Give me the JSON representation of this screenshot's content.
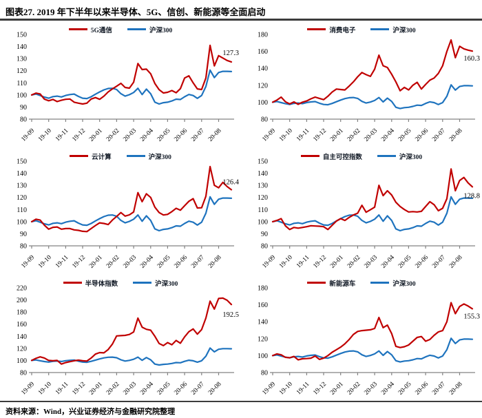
{
  "header": {
    "title": "图表27. 2019 年下半年以来半导体、5G、信创、新能源等全面启动"
  },
  "footer": {
    "source": "资料来源：Wind，兴业证券经济与金融研究院整理"
  },
  "colors": {
    "series_red": "#C00000",
    "benchmark_blue": "#1E73BE",
    "axis_gray": "#828282"
  },
  "chart_data": [
    {
      "type": "line",
      "title": "5G通信 vs 沪深300",
      "ylim": [
        80,
        150
      ],
      "yticks": [
        80,
        90,
        100,
        110,
        120,
        130,
        140,
        150
      ],
      "x_tick_labels": [
        "19-09",
        "19-10",
        "19-11",
        "19-12",
        "20-01",
        "20-02",
        "20-03",
        "20-04",
        "20-05",
        "20-06",
        "20-07",
        "20-08"
      ],
      "end_label": "127.3",
      "legend_position": "top-center",
      "grid": false,
      "series": [
        {
          "name": "5G通信",
          "color": "#C00000",
          "values": [
            100,
            101.5,
            100.8,
            96.5,
            95.2,
            96.3,
            94.5,
            95.6,
            96.4,
            96.6,
            94,
            93.2,
            92.5,
            93.2,
            96.6,
            97.8,
            96.4,
            99,
            102.5,
            105,
            107.2,
            109.6,
            106.2,
            105.6,
            110.5,
            126,
            121,
            121.3,
            117.5,
            109.5,
            104.3,
            101.6,
            102.2,
            103.6,
            101.8,
            105.2,
            114,
            115.8,
            110,
            105,
            104.5,
            114,
            141,
            124,
            132.5,
            130.5,
            128.5,
            127.3
          ]
        },
        {
          "name": "沪深300",
          "color": "#1E73BE",
          "values": [
            100,
            100.8,
            99.5,
            98.2,
            97.3,
            98.6,
            99,
            98.3,
            99.6,
            100.3,
            100.7,
            98.8,
            97.3,
            97,
            98.5,
            100.6,
            102.5,
            104.2,
            105.3,
            105.5,
            104.5,
            101,
            99,
            100.2,
            102,
            105.5,
            100.3,
            104.8,
            101,
            94,
            92.5,
            93.6,
            94,
            95,
            96.5,
            96.2,
            98.5,
            100.4,
            99.5,
            97.2,
            99.5,
            107,
            120.5,
            114.3,
            118.5,
            119.5,
            119.5,
            119.3
          ]
        }
      ]
    },
    {
      "type": "line",
      "title": "消费电子 vs 沪深300",
      "ylim": [
        80,
        180
      ],
      "yticks": [
        80,
        100,
        120,
        140,
        160,
        180
      ],
      "x_tick_labels": [
        "19-09",
        "19-10",
        "19-11",
        "19-12",
        "20-01",
        "20-02",
        "20-03",
        "20-04",
        "20-05",
        "20-06",
        "20-07",
        "20-08"
      ],
      "end_label": "160.3",
      "legend_position": "top-center",
      "grid": false,
      "series": [
        {
          "name": "消费电子",
          "color": "#C00000",
          "values": [
            100,
            102.5,
            106,
            100.5,
            98,
            100.3,
            97.5,
            100,
            101.5,
            104,
            106,
            104.5,
            103,
            107,
            112,
            115.5,
            115,
            114.5,
            119,
            124,
            130,
            135,
            132.5,
            130.5,
            139,
            155.5,
            143,
            141,
            133,
            124,
            113.5,
            117.5,
            114.5,
            120,
            123.5,
            115.5,
            121,
            126,
            128.5,
            134,
            143,
            160,
            173.5,
            152.5,
            166,
            163,
            161.5,
            160.3
          ]
        },
        {
          "name": "沪深300",
          "color": "#1E73BE",
          "values": [
            100,
            100.8,
            99.5,
            98.2,
            97.3,
            98.6,
            99,
            98.3,
            99.6,
            100.3,
            100.7,
            98.8,
            97.3,
            97,
            98.5,
            100.6,
            102.5,
            104.2,
            105.3,
            105.5,
            104.5,
            101,
            99,
            100.2,
            102,
            105.5,
            100.3,
            104.8,
            101,
            94,
            92.5,
            93.6,
            94,
            95,
            96.5,
            96.2,
            98.5,
            100.4,
            99.5,
            97.2,
            99.5,
            107,
            120.5,
            114.3,
            118.5,
            119.5,
            119.5,
            119.3
          ]
        }
      ]
    },
    {
      "type": "line",
      "title": "云计算 vs 沪深300",
      "ylim": [
        80,
        150
      ],
      "yticks": [
        80,
        90,
        100,
        110,
        120,
        130,
        140,
        150
      ],
      "x_tick_labels": [
        "19-09",
        "19-10",
        "19-11",
        "19-12",
        "20-01",
        "20-02",
        "20-03",
        "20-04",
        "20-05",
        "20-06",
        "20-07",
        "20-08"
      ],
      "end_label": "126.4",
      "legend_position": "top-center",
      "grid": false,
      "series": [
        {
          "name": "云计算",
          "color": "#C00000",
          "values": [
            100,
            102,
            101.3,
            97,
            93.8,
            95.3,
            95.6,
            93.8,
            94.3,
            94.3,
            93.2,
            92.8,
            92,
            91.8,
            94.3,
            96.8,
            99,
            98.5,
            97.6,
            101.3,
            104.3,
            107.5,
            104.6,
            105.6,
            108,
            124,
            116.5,
            123,
            120,
            112,
            107.5,
            105.5,
            106,
            108.3,
            111,
            109.5,
            113.2,
            116.8,
            119,
            111.3,
            111.5,
            121,
            145.5,
            130,
            128,
            132.5,
            129,
            126.4
          ]
        },
        {
          "name": "沪深300",
          "color": "#1E73BE",
          "values": [
            100,
            100.8,
            99.5,
            98.2,
            97.3,
            98.6,
            99,
            98.3,
            99.6,
            100.3,
            100.7,
            98.8,
            97.3,
            97,
            98.5,
            100.6,
            102.5,
            104.2,
            105.3,
            105.5,
            104.5,
            101,
            99,
            100.2,
            102,
            105.5,
            100.3,
            104.8,
            101,
            94,
            92.5,
            93.6,
            94,
            95,
            96.5,
            96.2,
            98.5,
            100.4,
            99.5,
            97.2,
            99.5,
            107,
            120.5,
            114.3,
            118.5,
            119.5,
            119.5,
            119.3
          ]
        }
      ]
    },
    {
      "type": "line",
      "title": "自主可控指数 vs 沪深300",
      "ylim": [
        80,
        150
      ],
      "yticks": [
        80,
        90,
        100,
        110,
        120,
        130,
        140,
        150
      ],
      "x_tick_labels": [
        "19-09",
        "19-10",
        "19-11",
        "19-12",
        "20-01",
        "20-02",
        "20-03",
        "20-04",
        "20-05",
        "20-06",
        "20-07",
        "20-08"
      ],
      "end_label": "128.8",
      "legend_position": "top-center",
      "grid": false,
      "series": [
        {
          "name": "自主可控指数",
          "color": "#C00000",
          "values": [
            100,
            101,
            102.5,
            96.5,
            93.5,
            95.2,
            94.6,
            95.2,
            95.8,
            96.6,
            96.4,
            96.2,
            95.8,
            93.5,
            97,
            100.5,
            102.5,
            101,
            103.5,
            105.5,
            107,
            113.5,
            107.8,
            109.8,
            112,
            130,
            121.5,
            125.5,
            122,
            116,
            112.5,
            110,
            108,
            108.3,
            108,
            108.5,
            112.5,
            116.5,
            114,
            109,
            111,
            119,
            143.5,
            125.5,
            134,
            136.5,
            132,
            128.8
          ]
        },
        {
          "name": "沪深300",
          "color": "#1E73BE",
          "values": [
            100,
            100.8,
            99.5,
            98.2,
            97.3,
            98.6,
            99,
            98.3,
            99.6,
            100.3,
            100.7,
            98.8,
            97.3,
            97,
            98.5,
            100.6,
            102.5,
            104.2,
            105.3,
            105.5,
            104.5,
            101,
            99,
            100.2,
            102,
            105.5,
            100.3,
            104.8,
            101,
            94,
            92.5,
            93.6,
            94,
            95,
            96.5,
            96.2,
            98.5,
            100.4,
            99.5,
            97.2,
            99.5,
            107,
            120.5,
            114.3,
            118.5,
            119.5,
            119.5,
            119.3
          ]
        }
      ]
    },
    {
      "type": "line",
      "title": "半导体指数 vs 沪深300",
      "ylim": [
        80,
        220
      ],
      "yticks": [
        80,
        100,
        120,
        140,
        160,
        180,
        200,
        220
      ],
      "x_tick_labels": [
        "19-09",
        "19-10",
        "19-11",
        "19-12",
        "20-01",
        "20-02",
        "20-03",
        "20-04",
        "20-05",
        "20-06",
        "20-07",
        "20-08"
      ],
      "end_label": "192.5",
      "legend_position": "top-center",
      "grid": false,
      "series": [
        {
          "name": "半导体指数",
          "color": "#C00000",
          "values": [
            100,
            103.5,
            106,
            104,
            100,
            99.5,
            100,
            94,
            96.5,
            98,
            99.5,
            100.5,
            99.5,
            99,
            104,
            110.5,
            113,
            112.5,
            118,
            127,
            140.5,
            141,
            141.5,
            143,
            147,
            170,
            155,
            151.5,
            150,
            140,
            128,
            124.5,
            129.5,
            126,
            133,
            128.5,
            139,
            147.5,
            152,
            143.5,
            151,
            170,
            198,
            185,
            202.5,
            203,
            199.5,
            192.5
          ]
        },
        {
          "name": "沪深300",
          "color": "#1E73BE",
          "values": [
            100,
            100.8,
            99.5,
            98.2,
            97.3,
            98.6,
            99,
            98.3,
            99.6,
            100.3,
            100.7,
            98.8,
            97.3,
            97,
            98.5,
            100.6,
            102.5,
            104.2,
            105.3,
            105.5,
            104.5,
            101,
            99,
            100.2,
            102,
            105.5,
            100.3,
            104.8,
            101,
            94,
            92.5,
            93.6,
            94,
            95,
            96.5,
            96.2,
            98.5,
            100.4,
            99.5,
            97.2,
            99.5,
            107,
            120.5,
            114.3,
            118.5,
            119.5,
            119.5,
            119.3
          ]
        }
      ]
    },
    {
      "type": "line",
      "title": "新能源车 vs 沪深300",
      "ylim": [
        80,
        180
      ],
      "yticks": [
        80,
        100,
        120,
        140,
        160,
        180
      ],
      "x_tick_labels": [
        "19-09",
        "19-10",
        "19-11",
        "19-12",
        "20-01",
        "20-02",
        "20-03",
        "20-04",
        "20-05",
        "20-06",
        "20-07",
        "20-08"
      ],
      "end_label": "155.3",
      "legend_position": "top-center",
      "grid": false,
      "series": [
        {
          "name": "新能源车",
          "color": "#C00000",
          "values": [
            100,
            102,
            101,
            98,
            97.5,
            99,
            95,
            96.3,
            96.5,
            97,
            99.5,
            95.5,
            97,
            100,
            104,
            107,
            110,
            114,
            119,
            125,
            128.5,
            129.5,
            130,
            130.5,
            132,
            145,
            133,
            136,
            126,
            111,
            109.5,
            110.5,
            112.5,
            117,
            121.5,
            122.5,
            117,
            119,
            124,
            128,
            129.5,
            140,
            162.5,
            149.5,
            158,
            161,
            158.5,
            155.3
          ]
        },
        {
          "name": "沪深300",
          "color": "#1E73BE",
          "values": [
            100,
            100.8,
            99.5,
            98.2,
            97.3,
            98.6,
            99,
            98.3,
            99.6,
            100.3,
            100.7,
            98.8,
            97.3,
            97,
            98.5,
            100.6,
            102.5,
            104.2,
            105.3,
            105.5,
            104.5,
            101,
            99,
            100.2,
            102,
            105.5,
            100.3,
            104.8,
            101,
            94,
            92.5,
            93.6,
            94,
            95,
            96.5,
            96.2,
            98.5,
            100.4,
            99.5,
            97.2,
            99.5,
            107,
            120.5,
            114.3,
            118.5,
            119.5,
            119.5,
            119.3
          ]
        }
      ]
    }
  ]
}
